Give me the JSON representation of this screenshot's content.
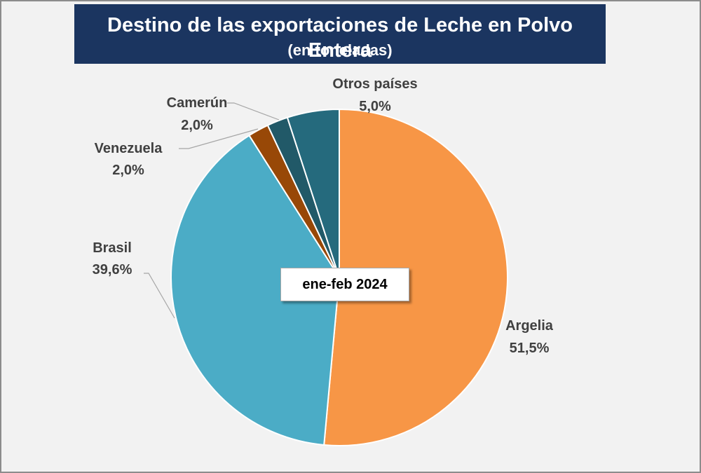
{
  "chart_data": {
    "type": "pie",
    "title": "Destino de las exportaciones de Leche en Polvo Entera",
    "subtitle": "(en toneladas)",
    "annotation": "ene-feb 2024",
    "slices": [
      {
        "name": "Argelia",
        "label": "51,5%",
        "value": 51.5,
        "color": "#f79646"
      },
      {
        "name": "Brasil",
        "label": "39,6%",
        "value": 39.6,
        "color": "#4bacc6"
      },
      {
        "name": "Venezuela",
        "label": "2,0%",
        "value": 2.0,
        "color": "#984807"
      },
      {
        "name": "Camerún",
        "label": "2,0%",
        "value": 2.0,
        "color": "#215968"
      },
      {
        "name": "Otros países",
        "label": "5,0%",
        "value": 5.0,
        "color": "#256a7d"
      }
    ],
    "legend": "none"
  }
}
